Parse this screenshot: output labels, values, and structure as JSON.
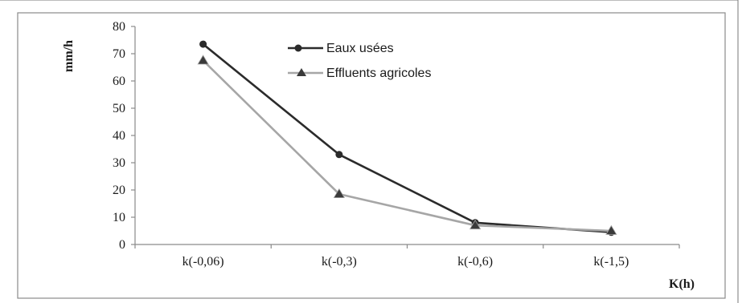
{
  "chart_data": {
    "type": "line",
    "categories": [
      "k(-0,06)",
      "k(-0,3)",
      "k(-0,6)",
      "k(-1,5)"
    ],
    "series": [
      {
        "name": "Eaux usées",
        "values": [
          73.5,
          33,
          8,
          4.5
        ],
        "color": "#2b2b2b",
        "marker": "circle"
      },
      {
        "name": "Effluents agricoles",
        "values": [
          67.5,
          18.5,
          7,
          5
        ],
        "color": "#a6a6a6",
        "marker": "triangle"
      }
    ],
    "ylabel": "mm/h",
    "xlabel": "K(h)",
    "ylim": [
      0,
      80
    ],
    "yticks": [
      0,
      10,
      20,
      30,
      40,
      50,
      60,
      70,
      80
    ],
    "grid": false,
    "legend": "top-center"
  }
}
